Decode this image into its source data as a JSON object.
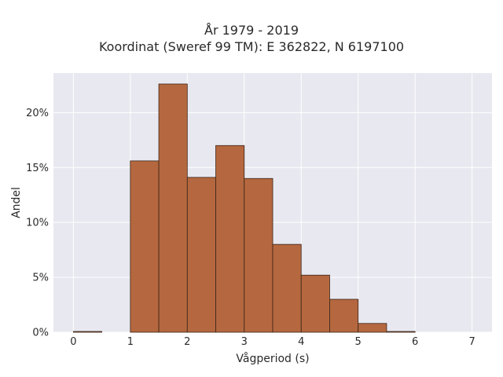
{
  "chart_data": {
    "type": "bar",
    "title_lines": [
      "År 1979 - 2019",
      "Koordinat (Sweref 99 TM): E 362822, N 6197100"
    ],
    "xlabel": "Vågperiod (s)",
    "ylabel": "Andel",
    "xlim": [
      -0.35,
      7.35
    ],
    "ylim": [
      0,
      0.236
    ],
    "x_ticks": [
      0,
      1,
      2,
      3,
      4,
      5,
      6,
      7
    ],
    "x_tick_labels": [
      "0",
      "1",
      "2",
      "3",
      "4",
      "5",
      "6",
      "7"
    ],
    "y_ticks": [
      0,
      0.05,
      0.1,
      0.15,
      0.2
    ],
    "y_tick_labels": [
      "0%",
      "5%",
      "10%",
      "15%",
      "20%"
    ],
    "bin_width": 0.5,
    "bins": [
      {
        "x0": 0.0,
        "x1": 0.5,
        "value": 0.0007
      },
      {
        "x0": 0.5,
        "x1": 1.0,
        "value": 0.0
      },
      {
        "x0": 1.0,
        "x1": 1.5,
        "value": 0.156
      },
      {
        "x0": 1.5,
        "x1": 2.0,
        "value": 0.226
      },
      {
        "x0": 2.0,
        "x1": 2.5,
        "value": 0.141
      },
      {
        "x0": 2.5,
        "x1": 3.0,
        "value": 0.17
      },
      {
        "x0": 3.0,
        "x1": 3.5,
        "value": 0.14
      },
      {
        "x0": 3.5,
        "x1": 4.0,
        "value": 0.08
      },
      {
        "x0": 4.0,
        "x1": 4.5,
        "value": 0.052
      },
      {
        "x0": 4.5,
        "x1": 5.0,
        "value": 0.03
      },
      {
        "x0": 5.0,
        "x1": 5.5,
        "value": 0.008
      },
      {
        "x0": 5.5,
        "x1": 6.0,
        "value": 0.0007
      }
    ],
    "grid": true,
    "colors": {
      "bar_fill": "#b5683f",
      "bar_edge": "#3a2418",
      "plot_bg": "#e8e8f0",
      "grid": "#ffffff"
    }
  }
}
